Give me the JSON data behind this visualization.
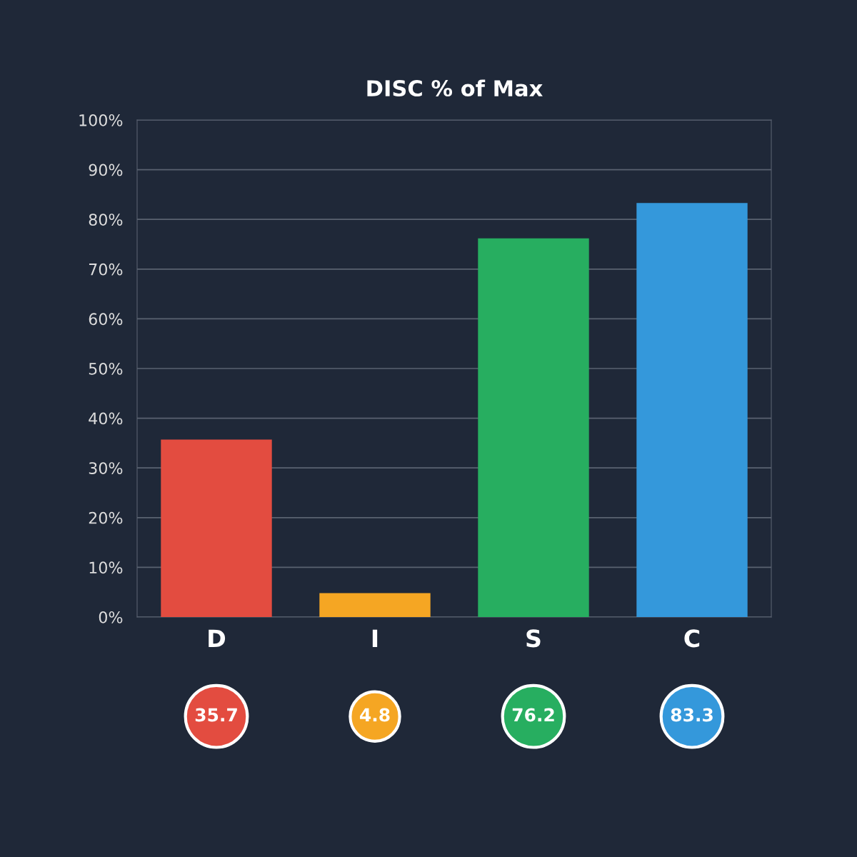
{
  "chart_data": {
    "type": "bar",
    "title": "DISC % of Max",
    "categories": [
      "D",
      "I",
      "S",
      "C"
    ],
    "values": [
      35.7,
      4.8,
      76.2,
      83.3
    ],
    "colors": [
      "#e34c40",
      "#f5a623",
      "#27ae60",
      "#3498db"
    ],
    "ylim": [
      0,
      100
    ],
    "yticks": [
      {
        "value": 0,
        "label": "0%"
      },
      {
        "value": 10,
        "label": "10%"
      },
      {
        "value": 20,
        "label": "20%"
      },
      {
        "value": 30,
        "label": "30%"
      },
      {
        "value": 40,
        "label": "40%"
      },
      {
        "value": 50,
        "label": "50%"
      },
      {
        "value": 60,
        "label": "60%"
      },
      {
        "value": 70,
        "label": "70%"
      },
      {
        "value": 80,
        "label": "80%"
      },
      {
        "value": 90,
        "label": "90%"
      },
      {
        "value": 100,
        "label": "100%"
      }
    ],
    "grid": "y",
    "data_labels": true
  }
}
